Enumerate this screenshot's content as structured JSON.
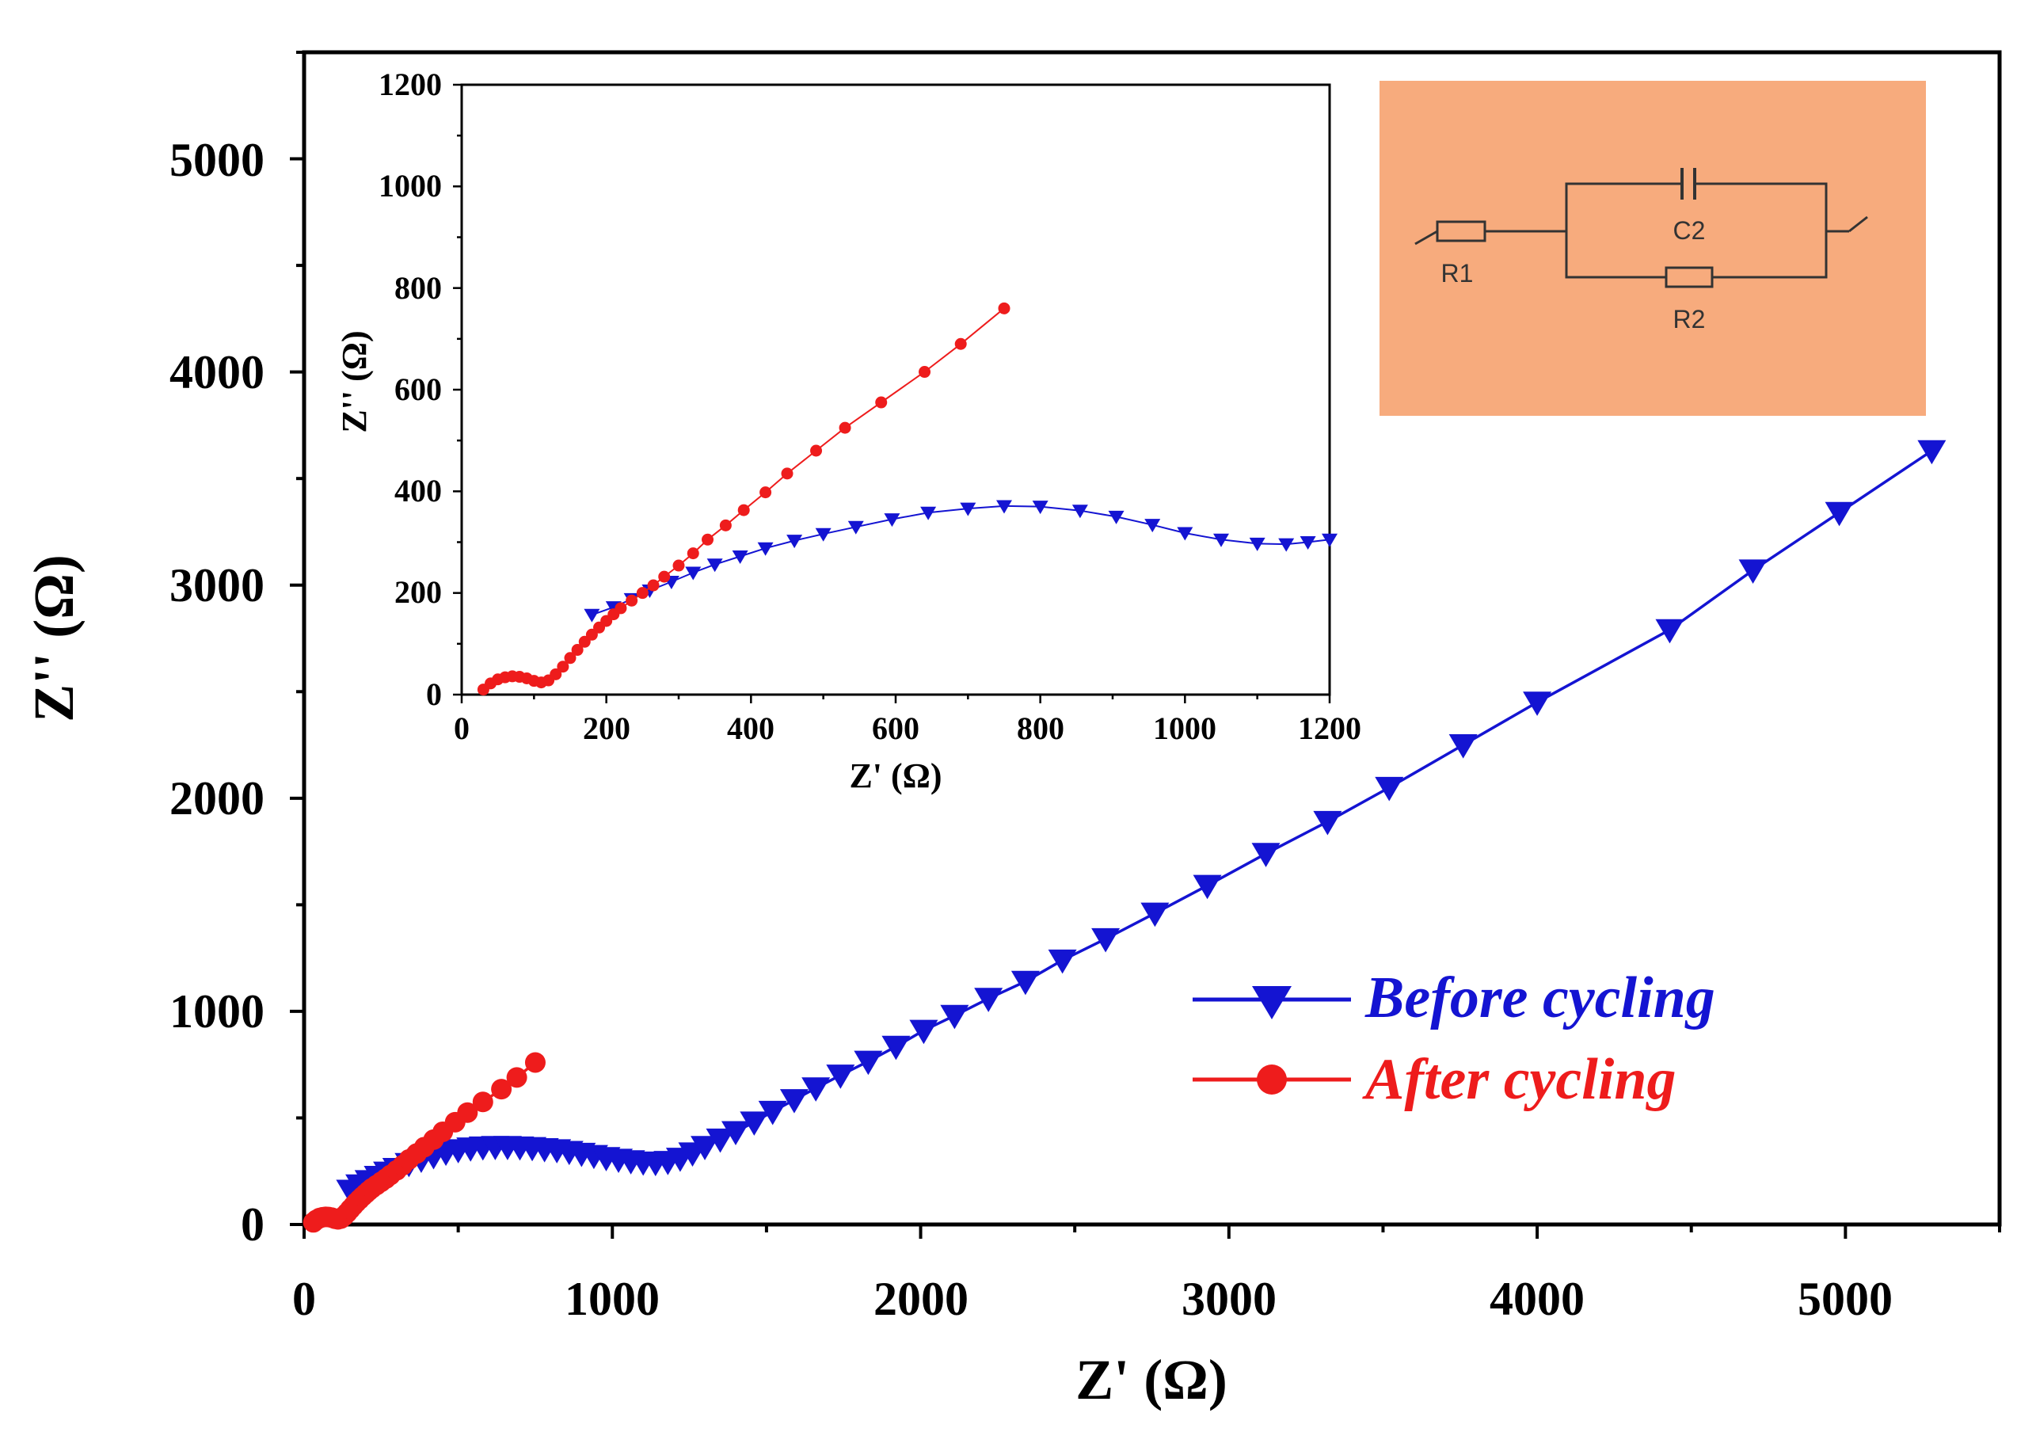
{
  "chart_data": [
    {
      "id": "main",
      "type": "scatter",
      "xlabel": "Z' (Ω)",
      "ylabel": "Z'' (Ω)",
      "xlim": [
        0,
        5500
      ],
      "ylim": [
        0,
        5500
      ],
      "xticks": [
        0,
        1000,
        2000,
        3000,
        4000,
        5000
      ],
      "yticks": [
        0,
        1000,
        2000,
        3000,
        4000,
        5000
      ],
      "xtick_labels": [
        "0",
        "1000",
        "2000",
        "3000",
        "4000",
        "5000"
      ],
      "ytick_labels": [
        "0",
        "1000",
        "2000",
        "3000",
        "4000",
        "5000"
      ],
      "legend_position": "center-right",
      "series": [
        {
          "name": "Before cycling",
          "color": "#1414d2",
          "marker": "triangle-down",
          "x": [
            150,
            180,
            210,
            240,
            270,
            300,
            340,
            380,
            420,
            460,
            500,
            540,
            580,
            620,
            660,
            700,
            740,
            780,
            820,
            860,
            900,
            940,
            980,
            1020,
            1060,
            1100,
            1140,
            1180,
            1220,
            1260,
            1300,
            1350,
            1400,
            1460,
            1520,
            1590,
            1660,
            1740,
            1830,
            1920,
            2010,
            2110,
            2220,
            2340,
            2460,
            2600,
            2760,
            2930,
            3120,
            3320,
            3520,
            3760,
            4000,
            4430,
            4700,
            4980,
            5280
          ],
          "y": [
            160,
            185,
            205,
            225,
            245,
            262,
            285,
            305,
            322,
            338,
            350,
            358,
            363,
            365,
            365,
            363,
            360,
            355,
            350,
            342,
            333,
            323,
            313,
            305,
            298,
            292,
            290,
            295,
            310,
            335,
            365,
            400,
            435,
            480,
            530,
            585,
            640,
            700,
            765,
            835,
            910,
            980,
            1060,
            1140,
            1240,
            1340,
            1460,
            1590,
            1740,
            1890,
            2050,
            2250,
            2450,
            2790,
            3070,
            3340,
            3630
          ]
        },
        {
          "name": "After cycling",
          "color": "#ee1c1c",
          "marker": "circle",
          "x": [
            30,
            40,
            50,
            60,
            70,
            80,
            90,
            100,
            110,
            120,
            130,
            140,
            150,
            160,
            170,
            180,
            190,
            200,
            210,
            220,
            235,
            250,
            265,
            280,
            300,
            320,
            340,
            365,
            390,
            420,
            450,
            490,
            530,
            580,
            640,
            690,
            750
          ],
          "y": [
            10,
            22,
            30,
            34,
            36,
            35,
            32,
            27,
            24,
            28,
            40,
            55,
            72,
            88,
            104,
            118,
            132,
            145,
            158,
            170,
            185,
            200,
            215,
            232,
            254,
            278,
            305,
            333,
            363,
            398,
            435,
            480,
            525,
            575,
            635,
            690,
            760
          ]
        }
      ]
    },
    {
      "id": "inset",
      "type": "scatter",
      "xlabel": "Z' (Ω)",
      "ylabel": "Z'' (Ω)",
      "xlim": [
        0,
        1200
      ],
      "ylim": [
        0,
        1200
      ],
      "xticks": [
        0,
        200,
        400,
        600,
        800,
        1000,
        1200
      ],
      "yticks": [
        0,
        200,
        400,
        600,
        800,
        1000,
        1200
      ],
      "xtick_labels": [
        "0",
        "200",
        "400",
        "600",
        "800",
        "1000",
        "1200"
      ],
      "ytick_labels": [
        "0",
        "200",
        "400",
        "600",
        "800",
        "1000",
        "1200"
      ],
      "series": [
        {
          "name": "Before cycling",
          "color": "#1414d2",
          "marker": "triangle-down",
          "x": [
            180,
            210,
            235,
            260,
            290,
            320,
            350,
            385,
            420,
            460,
            500,
            545,
            595,
            645,
            700,
            750,
            800,
            855,
            905,
            955,
            1000,
            1050,
            1100,
            1140,
            1170,
            1200
          ],
          "y": [
            157,
            172,
            188,
            205,
            222,
            240,
            256,
            272,
            288,
            303,
            316,
            330,
            345,
            358,
            366,
            371,
            370,
            362,
            350,
            334,
            318,
            305,
            297,
            296,
            300,
            305
          ]
        },
        {
          "name": "After cycling",
          "color": "#ee1c1c",
          "marker": "circle",
          "x": [
            30,
            40,
            50,
            60,
            70,
            80,
            90,
            100,
            110,
            120,
            130,
            140,
            150,
            160,
            170,
            180,
            190,
            200,
            210,
            220,
            235,
            250,
            265,
            280,
            300,
            320,
            340,
            365,
            390,
            420,
            450,
            490,
            530,
            580,
            640,
            690,
            750
          ],
          "y": [
            10,
            22,
            30,
            34,
            36,
            35,
            32,
            27,
            24,
            28,
            40,
            55,
            72,
            88,
            104,
            118,
            132,
            145,
            158,
            170,
            185,
            200,
            215,
            232,
            254,
            278,
            305,
            333,
            363,
            398,
            435,
            480,
            525,
            575,
            635,
            690,
            760
          ]
        }
      ]
    }
  ],
  "circuit": {
    "background": "#f7ab7d",
    "labels": {
      "r1": "R1",
      "c2": "C2",
      "r2": "R2"
    }
  }
}
